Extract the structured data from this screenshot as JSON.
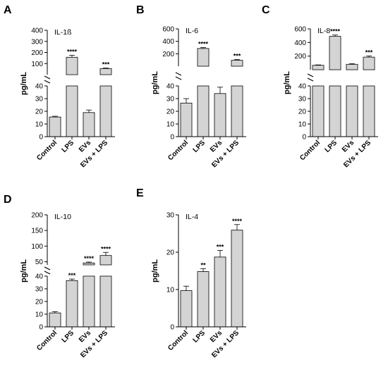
{
  "chart_data": [
    {
      "panel": "A",
      "type": "bar",
      "title": "IL-1ß",
      "ylabel": "pg/mL",
      "categories": [
        "Control",
        "LPS",
        "EVs",
        "EVs + LPS"
      ],
      "values": [
        15.5,
        157,
        19,
        55
      ],
      "errors": [
        0.6,
        18,
        2,
        5
      ],
      "significance": [
        "",
        "****",
        "",
        "***"
      ],
      "axis_break": true,
      "lower_range": [
        0,
        40
      ],
      "lower_ticks": [
        0,
        10,
        20,
        30,
        40
      ],
      "upper_range": [
        0,
        400
      ],
      "upper_ticks": [
        100,
        200,
        300,
        400
      ],
      "grid": false
    },
    {
      "panel": "B",
      "type": "bar",
      "title": "IL-6",
      "ylabel": "pg/mL",
      "categories": [
        "Control",
        "LPS",
        "EVs",
        "EVs + LPS"
      ],
      "values": [
        26.5,
        285,
        34,
        95
      ],
      "errors": [
        3.5,
        15,
        5,
        12
      ],
      "significance": [
        "",
        "****",
        "",
        "***"
      ],
      "axis_break": true,
      "lower_range": [
        0,
        40
      ],
      "lower_ticks": [
        0,
        10,
        20,
        30,
        40
      ],
      "upper_range": [
        0,
        600
      ],
      "upper_ticks": [
        200,
        400,
        600
      ],
      "grid": false
    },
    {
      "panel": "C",
      "type": "bar",
      "title": "IL-8",
      "ylabel": "pg/mL",
      "categories": [
        "Control",
        "LPS",
        "EVs",
        "EVs + LPS"
      ],
      "values": [
        65,
        490,
        80,
        185
      ],
      "errors": [
        6,
        20,
        10,
        18
      ],
      "significance": [
        "",
        "****",
        "",
        "***"
      ],
      "axis_break": true,
      "lower_range": [
        0,
        40
      ],
      "lower_ticks": [
        0,
        10,
        20,
        30,
        40
      ],
      "upper_range": [
        0,
        600
      ],
      "upper_ticks": [
        200,
        400,
        600
      ],
      "grid": false
    },
    {
      "panel": "D",
      "type": "bar",
      "title": "IL-10",
      "ylabel": "pg/mL",
      "categories": [
        "Control",
        "LPS",
        "EVs",
        "EVs + LPS"
      ],
      "values": [
        11,
        36.5,
        46,
        70
      ],
      "errors": [
        1,
        1.2,
        3,
        10
      ],
      "significance": [
        "",
        "***",
        "****",
        "****"
      ],
      "axis_break": true,
      "lower_range": [
        0,
        40
      ],
      "lower_ticks": [
        0,
        10,
        20,
        30,
        40
      ],
      "upper_range": [
        40,
        200
      ],
      "upper_ticks": [
        50,
        100,
        150,
        200
      ],
      "grid": false
    },
    {
      "panel": "E",
      "type": "bar",
      "title": "IL-4",
      "ylabel": "pg/mL",
      "categories": [
        "Control",
        "LPS",
        "EVs",
        "EVs + LPS"
      ],
      "values": [
        9.7,
        14.8,
        18.7,
        25.9
      ],
      "errors": [
        1.2,
        0.8,
        1.8,
        1.5
      ],
      "significance": [
        "",
        "**",
        "***",
        "****"
      ],
      "axis_break": false,
      "range": [
        0,
        30
      ],
      "ticks": [
        0,
        10,
        20,
        30
      ],
      "grid": false
    }
  ],
  "colors": {
    "bar_fill": "#d4d4d4",
    "bar_stroke": "#000000",
    "axis": "#000000"
  }
}
